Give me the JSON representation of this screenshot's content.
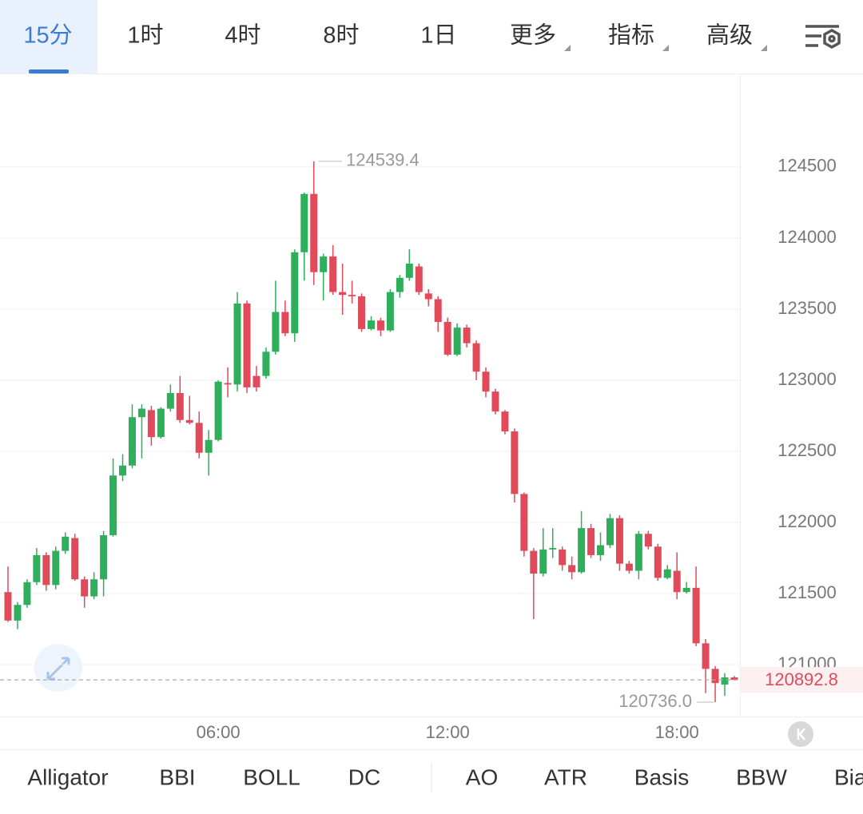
{
  "toolbar": {
    "tabs": [
      "15分",
      "1时",
      "4时",
      "8时",
      "1日",
      "更多",
      "指标",
      "高级"
    ]
  },
  "indicators": [
    "Alligator",
    "BBI",
    "BOLL",
    "DC",
    "AO",
    "ATR",
    "Basis",
    "BBW",
    "Bias"
  ],
  "chart_data": {
    "type": "candlestick",
    "categories": [
      null,
      null,
      null,
      null,
      null,
      null,
      null,
      null,
      null,
      null,
      null,
      null,
      null,
      null,
      null,
      null,
      null,
      null,
      null,
      null,
      null,
      null,
      "06:00",
      null,
      null,
      null,
      null,
      null,
      null,
      null,
      null,
      null,
      null,
      null,
      null,
      null,
      null,
      null,
      null,
      null,
      null,
      null,
      null,
      null,
      null,
      null,
      "12:00",
      null,
      null,
      null,
      null,
      null,
      null,
      null,
      null,
      null,
      null,
      null,
      null,
      null,
      null,
      null,
      null,
      null,
      null,
      null,
      null,
      null,
      null,
      null,
      "18:00",
      null,
      null,
      null,
      null,
      null,
      null
    ],
    "open": [
      121510,
      121310,
      121420,
      121580,
      121770,
      121560,
      121800,
      121890,
      121600,
      121480,
      121600,
      121910,
      122330,
      122400,
      122740,
      122790,
      122600,
      122800,
      122910,
      122720,
      122700,
      122490,
      122580,
      122980,
      122970,
      123540,
      123030,
      123030,
      123200,
      123480,
      123330,
      123900,
      124310,
      123760,
      123870,
      123620,
      123600,
      123590,
      123360,
      123420,
      123350,
      123620,
      123720,
      123800,
      123610,
      123570,
      123410,
      123180,
      123370,
      123260,
      123060,
      122920,
      122780,
      122640,
      122200,
      121800,
      121640,
      121810,
      121810,
      121700,
      121650,
      121960,
      121770,
      121840,
      122030,
      121710,
      121660,
      121920,
      121830,
      121610,
      121660,
      121510,
      121540,
      121150,
      120970,
      120860,
      120910
    ],
    "high": [
      121690,
      121440,
      121600,
      121820,
      121790,
      121830,
      121930,
      121920,
      121620,
      121650,
      121940,
      122450,
      122480,
      122830,
      122830,
      122820,
      122810,
      122970,
      123030,
      122890,
      122780,
      122650,
      123000,
      123090,
      123620,
      123560,
      123100,
      123230,
      123700,
      123560,
      123920,
      124320,
      124539.4,
      123890,
      123950,
      123820,
      123700,
      123610,
      123450,
      123440,
      123640,
      123740,
      123920,
      123820,
      123640,
      123590,
      123440,
      123400,
      123390,
      123280,
      123090,
      122940,
      122790,
      122660,
      122210,
      121820,
      121960,
      121960,
      121830,
      121760,
      122080,
      121990,
      121930,
      122060,
      122050,
      121730,
      121940,
      121940,
      121850,
      121700,
      121790,
      121580,
      121690,
      121180,
      120990,
      120940,
      120920
    ],
    "low": [
      121300,
      121250,
      121400,
      121560,
      121520,
      121530,
      121780,
      121590,
      121400,
      121460,
      121480,
      121900,
      122290,
      122380,
      122450,
      122540,
      122590,
      122780,
      122700,
      122690,
      122450,
      122330,
      122570,
      122880,
      122920,
      122910,
      122920,
      123010,
      123180,
      123310,
      123270,
      123700,
      123670,
      123560,
      123600,
      123460,
      123540,
      123340,
      123350,
      123310,
      123340,
      123580,
      123700,
      123600,
      123520,
      123340,
      123170,
      123170,
      123230,
      123000,
      122880,
      122760,
      122620,
      122140,
      121760,
      121320,
      121620,
      121750,
      121660,
      121600,
      121640,
      121750,
      121730,
      121820,
      121660,
      121640,
      121600,
      121810,
      121590,
      121600,
      121460,
      121500,
      121130,
      120800,
      120736.0,
      120780,
      120890
    ],
    "close": [
      121310,
      121420,
      121580,
      121770,
      121560,
      121800,
      121900,
      121600,
      121480,
      121600,
      121910,
      122330,
      122400,
      122740,
      122800,
      122600,
      122800,
      122910,
      122720,
      122700,
      122490,
      122580,
      122990,
      122970,
      123540,
      122950,
      122950,
      123200,
      123480,
      123330,
      123900,
      124310,
      123760,
      123870,
      123620,
      123600,
      123590,
      123360,
      123420,
      123350,
      123620,
      123720,
      123820,
      123620,
      123570,
      123410,
      123180,
      123370,
      123260,
      123060,
      122920,
      122780,
      122640,
      122200,
      121800,
      121640,
      121810,
      121820,
      121700,
      121650,
      121960,
      121770,
      121840,
      122030,
      121710,
      121660,
      121920,
      121830,
      121610,
      121670,
      121510,
      121540,
      121150,
      120970,
      120870,
      120910,
      120892.8
    ],
    "up_color": "#2fae5c",
    "down_color": "#e14a5a",
    "ylim": [
      120635,
      125140
    ],
    "yticks": [
      121000,
      121500,
      122000,
      122500,
      123000,
      123500,
      124000,
      124500
    ],
    "grid": true,
    "max_label": 124539.4,
    "min_label": {
      "value": 120736.0,
      "label": "120736.0"
    },
    "last_price": 120892.8
  }
}
